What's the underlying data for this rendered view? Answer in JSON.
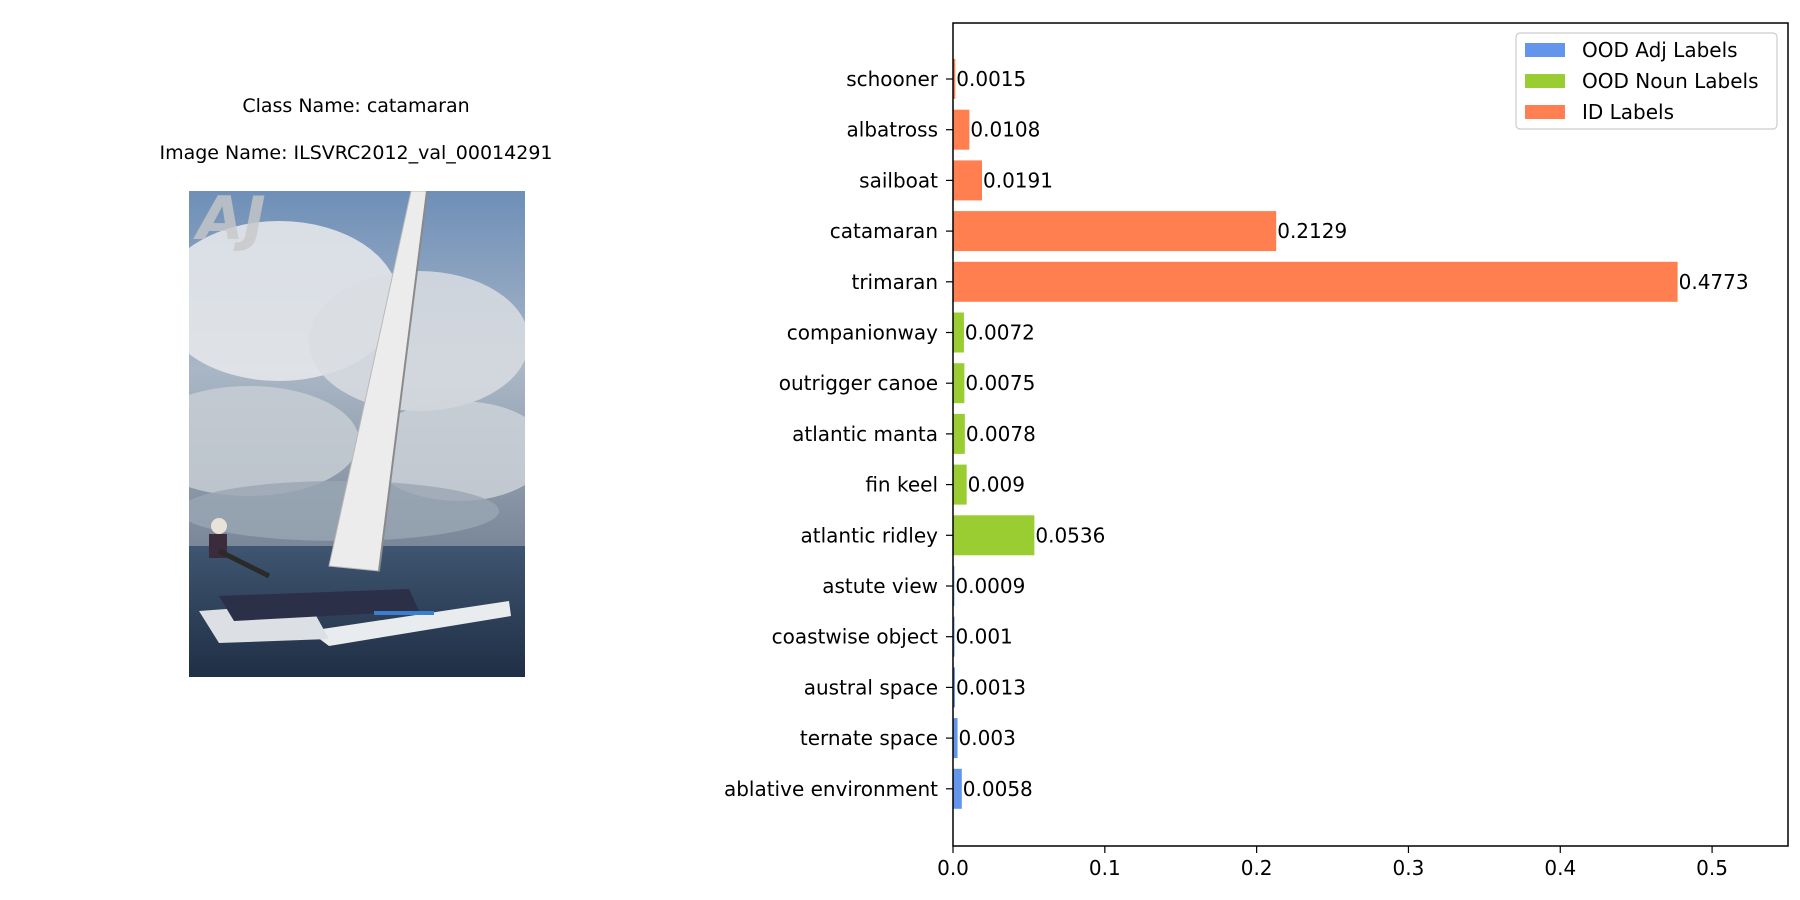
{
  "left_panel": {
    "class_line": "Class Name: catamaran",
    "image_line": "Image Name: ILSVRC2012_val_00014291"
  },
  "chart_data": {
    "type": "bar",
    "orientation": "horizontal",
    "categories": [
      "schooner",
      "albatross",
      "sailboat",
      "catamaran",
      "trimaran",
      "companionway",
      "outrigger canoe",
      "atlantic manta",
      "fin keel",
      "atlantic ridley",
      "astute view",
      "coastwise object",
      "austral space",
      "ternate space",
      "ablative environment"
    ],
    "values": [
      0.0015,
      0.0108,
      0.0191,
      0.2129,
      0.4773,
      0.0072,
      0.0075,
      0.0078,
      0.009,
      0.0536,
      0.0009,
      0.001,
      0.0013,
      0.003,
      0.0058
    ],
    "value_labels": [
      "0.0015",
      "0.0108",
      "0.0191",
      "0.2129",
      "0.4773",
      "0.0072",
      "0.0075",
      "0.0078",
      "0.009",
      "0.0536",
      "0.0009",
      "0.001",
      "0.0013",
      "0.003",
      "0.0058"
    ],
    "groups": [
      "ID Labels",
      "ID Labels",
      "ID Labels",
      "ID Labels",
      "ID Labels",
      "OOD Noun Labels",
      "OOD Noun Labels",
      "OOD Noun Labels",
      "OOD Noun Labels",
      "OOD Noun Labels",
      "OOD Adj Labels",
      "OOD Adj Labels",
      "OOD Adj Labels",
      "OOD Adj Labels",
      "OOD Adj Labels"
    ],
    "legend": [
      {
        "name": "OOD Adj Labels",
        "color": "#6495ED"
      },
      {
        "name": "OOD Noun Labels",
        "color": "#9ACD32"
      },
      {
        "name": "ID Labels",
        "color": "#FF7F50"
      }
    ],
    "legend_position": "top-right",
    "xlim": [
      0,
      0.55
    ],
    "xticks": [
      0.0,
      0.1,
      0.2,
      0.3,
      0.4,
      0.5
    ],
    "xtick_labels": [
      "0.0",
      "0.1",
      "0.2",
      "0.3",
      "0.4",
      "0.5"
    ],
    "title": "",
    "xlabel": "",
    "ylabel": "",
    "grid": false
  }
}
